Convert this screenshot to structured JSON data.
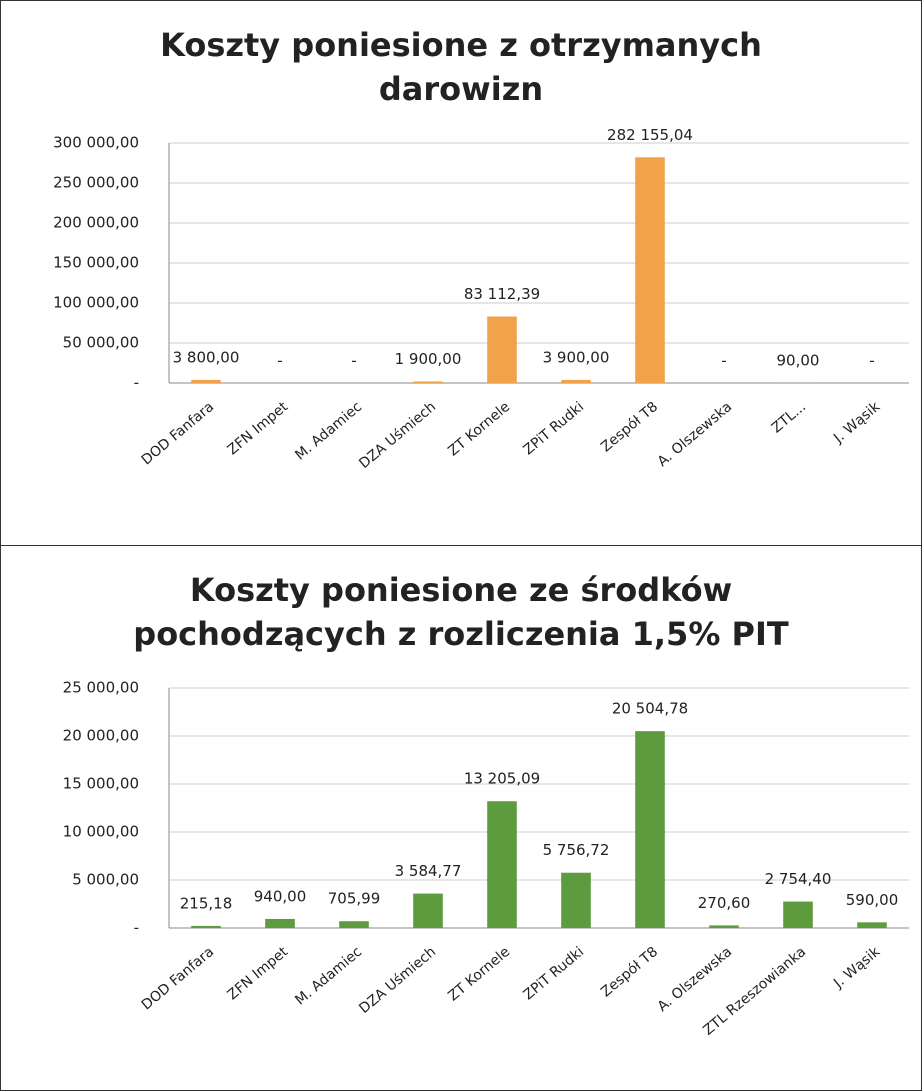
{
  "chart_data": [
    {
      "type": "bar",
      "title": "Koszty poniesione z otrzymanych darowizn",
      "categories": [
        "DOD Fanfara",
        "ZFN Impet",
        "M. Adamiec",
        "DZA Uśmiech",
        "ZT Kornele",
        "ZPiT Rudki",
        "Zespół T8",
        "A. Olszewska",
        "ZTL...",
        "J. Wąsik"
      ],
      "values": [
        3800,
        0,
        0,
        1900,
        83112.39,
        3900,
        282155.04,
        0,
        90,
        0
      ],
      "value_labels": [
        "3 800,00",
        "-",
        "-",
        "1 900,00",
        "83 112,39",
        "3 900,00",
        "282 155,04",
        "-",
        "90,00",
        "-"
      ],
      "color": "#f2a24a",
      "ylim": [
        0,
        300000
      ],
      "yticks": [
        {
          "value": 0,
          "label": "-"
        },
        {
          "value": 50000,
          "label": "50 000,00"
        },
        {
          "value": 100000,
          "label": "100 000,00"
        },
        {
          "value": 150000,
          "label": "150 000,00"
        },
        {
          "value": 200000,
          "label": "200 000,00"
        },
        {
          "value": 250000,
          "label": "250 000,00"
        },
        {
          "value": 300000,
          "label": "300 000,00"
        }
      ],
      "grid": true
    },
    {
      "type": "bar",
      "title": "Koszty poniesione ze środków pochodzących z rozliczenia 1,5% PIT",
      "categories": [
        "DOD Fanfara",
        "ZFN Impet",
        "M. Adamiec",
        "DZA Uśmiech",
        "ZT Kornele",
        "ZPiT Rudki",
        "Zespół T8",
        "A. Olszewska",
        "ZTL Rzeszowianka",
        "J. Wąsik"
      ],
      "values": [
        215.18,
        940,
        705.99,
        3584.77,
        13205.09,
        5756.72,
        20504.78,
        270.6,
        2754.4,
        590
      ],
      "value_labels": [
        "215,18",
        "940,00",
        "705,99",
        "3 584,77",
        "13 205,09",
        "5 756,72",
        "20 504,78",
        "270,60",
        "2 754,40",
        "590,00"
      ],
      "color": "#5e9a3e",
      "ylim": [
        0,
        25000
      ],
      "yticks": [
        {
          "value": 0,
          "label": "-"
        },
        {
          "value": 5000,
          "label": "5 000,00"
        },
        {
          "value": 10000,
          "label": "10 000,00"
        },
        {
          "value": 15000,
          "label": "15 000,00"
        },
        {
          "value": 20000,
          "label": "20 000,00"
        },
        {
          "value": 25000,
          "label": "25 000,00"
        }
      ],
      "grid": true
    }
  ]
}
